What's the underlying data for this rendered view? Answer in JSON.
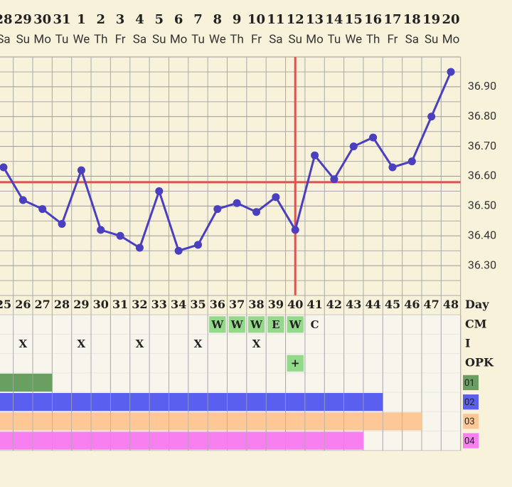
{
  "chart_data": {
    "type": "line",
    "x": [
      "28",
      "29",
      "30",
      "31",
      "1",
      "2",
      "3",
      "4",
      "5",
      "6",
      "7",
      "8",
      "9",
      "10",
      "11",
      "12",
      "13",
      "14",
      "15",
      "16",
      "17",
      "18",
      "19",
      "20"
    ],
    "weekdays": [
      "Sa",
      "Su",
      "Mo",
      "Tu",
      "We",
      "Th",
      "Fr",
      "Sa",
      "Su",
      "Mo",
      "Tu",
      "We",
      "Th",
      "Fr",
      "Sa",
      "Su",
      "Mo",
      "Tu",
      "We",
      "Th",
      "Fr",
      "Sa",
      "Su",
      "Mo"
    ],
    "days": [
      25,
      26,
      27,
      28,
      29,
      30,
      31,
      32,
      33,
      34,
      35,
      36,
      37,
      38,
      39,
      40,
      41,
      42,
      43,
      44,
      45,
      46,
      47,
      48
    ],
    "series": [
      {
        "name": "Temperature",
        "color": "#4a3fbf",
        "values": [
          36.63,
          36.52,
          36.49,
          36.44,
          36.62,
          36.42,
          36.4,
          36.36,
          36.55,
          36.35,
          36.37,
          36.49,
          36.51,
          36.48,
          36.53,
          36.42,
          36.67,
          36.59,
          36.7,
          36.73,
          36.63,
          36.65,
          36.8,
          36.95
        ]
      }
    ],
    "ylim": [
      36.2,
      37.0
    ],
    "yticks": [
      {
        "value": 36.3,
        "label": "36.30"
      },
      {
        "value": 36.4,
        "label": "36.40"
      },
      {
        "value": 36.5,
        "label": "36.50"
      },
      {
        "value": 36.6,
        "label": "36.60"
      },
      {
        "value": 36.7,
        "label": "36.70"
      },
      {
        "value": 36.8,
        "label": "36.80"
      },
      {
        "value": 36.9,
        "label": "36.90"
      }
    ],
    "grid": true,
    "coverline": 36.58,
    "coverline_color": "#d9534f",
    "ovulation_day": 40,
    "row_labels": {
      "day": "Day",
      "cm": "CM",
      "intercourse": "I",
      "opk": "OPK"
    },
    "cm": [
      null,
      null,
      null,
      null,
      null,
      null,
      null,
      null,
      null,
      null,
      null,
      "W",
      "W",
      "W",
      "E",
      "W",
      "C",
      null,
      null,
      null,
      null,
      null,
      null,
      null
    ],
    "intercourse": [
      null,
      "X",
      null,
      null,
      "X",
      null,
      null,
      "X",
      null,
      null,
      "X",
      null,
      null,
      "X",
      null,
      null,
      null,
      null,
      null,
      null,
      null,
      null,
      null,
      null
    ],
    "opk": [
      null,
      null,
      null,
      null,
      null,
      null,
      null,
      null,
      null,
      null,
      null,
      null,
      null,
      null,
      null,
      "+",
      null,
      null,
      null,
      null,
      null,
      null,
      null,
      null
    ],
    "bars": [
      {
        "label": "01",
        "color": "#6a9f62",
        "from_day": 25,
        "to_day": 27
      },
      {
        "label": "02",
        "color": "#5b5ff0",
        "from_day": 25,
        "to_day": 44
      },
      {
        "label": "03",
        "color": "#fdc896",
        "from_day": 25,
        "to_day": 46
      },
      {
        "label": "04",
        "color": "#f77ff0",
        "from_day": 25,
        "to_day": 43
      }
    ]
  }
}
